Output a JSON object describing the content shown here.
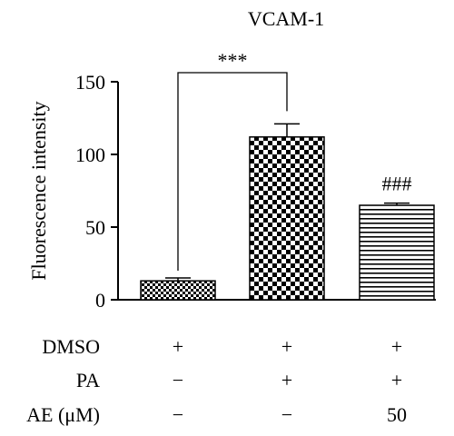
{
  "chart_data": {
    "type": "bar",
    "title": "VCAM-1",
    "ylabel": "Fluorescence intensity",
    "xlabel": "",
    "ylim": [
      0,
      150
    ],
    "yticks": [
      "0",
      "50",
      "100",
      "150"
    ],
    "grid": false,
    "categories": [
      "DMSO + / PA − / AE −",
      "DMSO + / PA + / AE −",
      "DMSO + / PA + / AE 50"
    ],
    "values": [
      13,
      112,
      65
    ],
    "errors": [
      2,
      9,
      1.5
    ],
    "patterns": [
      "fine-checker",
      "coarse-checker",
      "horizontal-lines"
    ],
    "annotations": [
      {
        "text": "***",
        "type": "bracket",
        "from": 0,
        "to": 1
      },
      {
        "text": "###",
        "type": "above-bar",
        "bar": 2
      }
    ],
    "treatment_table": {
      "rows": [
        {
          "label": "DMSO",
          "values": [
            "+",
            "+",
            "+"
          ]
        },
        {
          "label": "PA",
          "values": [
            "−",
            "+",
            "+"
          ]
        },
        {
          "label": "AE (μM)",
          "values": [
            "−",
            "−",
            "50"
          ]
        }
      ]
    }
  }
}
